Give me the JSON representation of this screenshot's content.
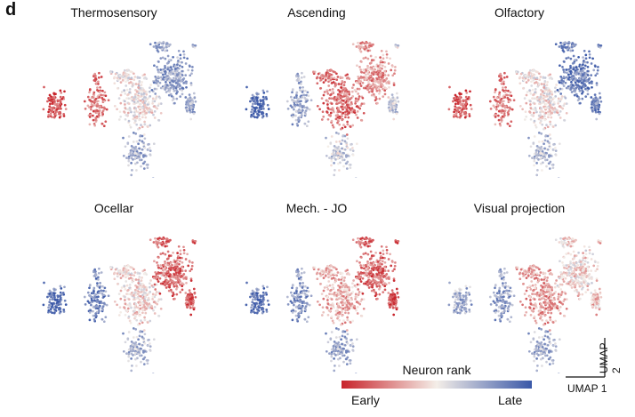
{
  "panel_letter": "d",
  "colors": {
    "early": "#c8242b",
    "mid": "#f4eee8",
    "late": "#3a58a8"
  },
  "chart_data": {
    "type": "scatter",
    "title": "",
    "xlabel": "UMAP 1",
    "ylabel": "UMAP 2",
    "color_variable": "Neuron rank",
    "colorbar": {
      "title": "Neuron rank",
      "min_label": "Early",
      "max_label": "Late"
    },
    "cluster_labels": [
      "left_small",
      "left_mid",
      "center",
      "top_right",
      "right_tip",
      "bottom_tail"
    ],
    "panels": [
      {
        "title": "Thermosensory",
        "cluster_rank": {
          "left_small": 0.1,
          "left_mid": 0.2,
          "center": 0.5,
          "top_right": 0.75,
          "right_tip": 0.7,
          "bottom_tail": 0.7
        }
      },
      {
        "title": "Ascending",
        "cluster_rank": {
          "left_small": 0.92,
          "left_mid": 0.72,
          "center": 0.2,
          "top_right": 0.28,
          "right_tip": 0.6,
          "bottom_tail": 0.6
        }
      },
      {
        "title": "Olfactory",
        "cluster_rank": {
          "left_small": 0.12,
          "left_mid": 0.22,
          "center": 0.48,
          "top_right": 0.85,
          "right_tip": 0.82,
          "bottom_tail": 0.65
        }
      },
      {
        "title": "Ocellar",
        "cluster_rank": {
          "left_small": 0.9,
          "left_mid": 0.82,
          "center": 0.45,
          "top_right": 0.18,
          "right_tip": 0.12,
          "bottom_tail": 0.68
        }
      },
      {
        "title": "Mech. - JO",
        "cluster_rank": {
          "left_small": 0.88,
          "left_mid": 0.78,
          "center": 0.35,
          "top_right": 0.18,
          "right_tip": 0.08,
          "bottom_tail": 0.72
        }
      },
      {
        "title": "Visual projection",
        "cluster_rank": {
          "left_small": 0.7,
          "left_mid": 0.75,
          "center": 0.3,
          "top_right": 0.45,
          "right_tip": 0.38,
          "bottom_tail": 0.7
        }
      }
    ]
  }
}
